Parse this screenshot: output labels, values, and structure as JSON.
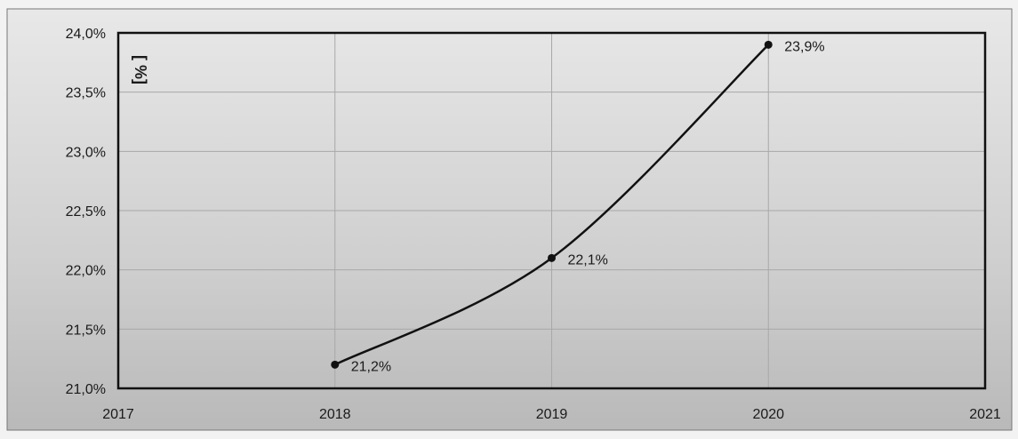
{
  "chart_data": {
    "type": "line",
    "x": [
      2018,
      2019,
      2020
    ],
    "values": [
      21.2,
      22.1,
      23.9
    ],
    "data_labels": [
      "21,2%",
      "22,1%",
      "23,9%"
    ],
    "xlim": [
      2017,
      2021
    ],
    "ylim": [
      21.0,
      24.0
    ],
    "x_ticks": [
      "2017",
      "2018",
      "2019",
      "2020",
      "2021"
    ],
    "y_ticks": [
      "21,0%",
      "21,5%",
      "22,0%",
      "22,5%",
      "23,0%",
      "23,5%",
      "24,0%"
    ],
    "unit_label": "[ %]",
    "grid": true,
    "line_color": "#111111",
    "smooth": true
  }
}
